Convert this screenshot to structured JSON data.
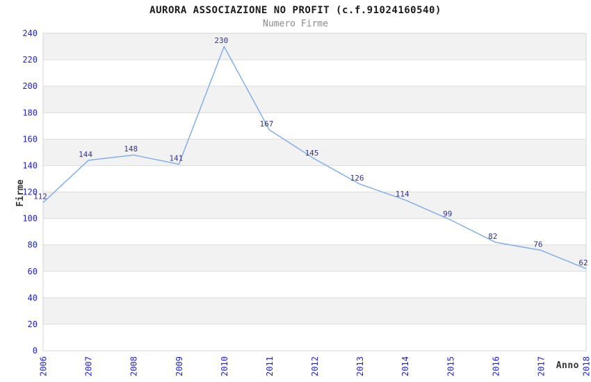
{
  "title": "AURORA ASSOCIAZIONE NO PROFIT (c.f.91024160540)",
  "subtitle": "Numero Firme",
  "chart_data": {
    "type": "line",
    "title": "AURORA ASSOCIAZIONE NO PROFIT (c.f.91024160540)",
    "subtitle": "Numero Firme",
    "categories": [
      "2006",
      "2007",
      "2008",
      "2009",
      "2010",
      "2011",
      "2012",
      "2013",
      "2014",
      "2015",
      "2016",
      "2017",
      "2018"
    ],
    "values": [
      112,
      144,
      148,
      141,
      230,
      167,
      145,
      126,
      114,
      99,
      82,
      76,
      62
    ],
    "xlabel": "Anno",
    "ylabel": "Firme",
    "ylim": [
      0,
      240
    ],
    "ytick_step": 20,
    "grid": true,
    "legend": "none",
    "colors": {
      "line": "#7fafe8",
      "axis_tick_label": "#2222cc",
      "data_label": "#333388",
      "band_fill": "#f2f2f2",
      "grid_line": "#dcdcdc",
      "plot_border": "#d4d4d4",
      "title_text": "#1a1a1a",
      "subtitle_text": "#8a8a8a",
      "axis_title_text": "#333333"
    }
  }
}
